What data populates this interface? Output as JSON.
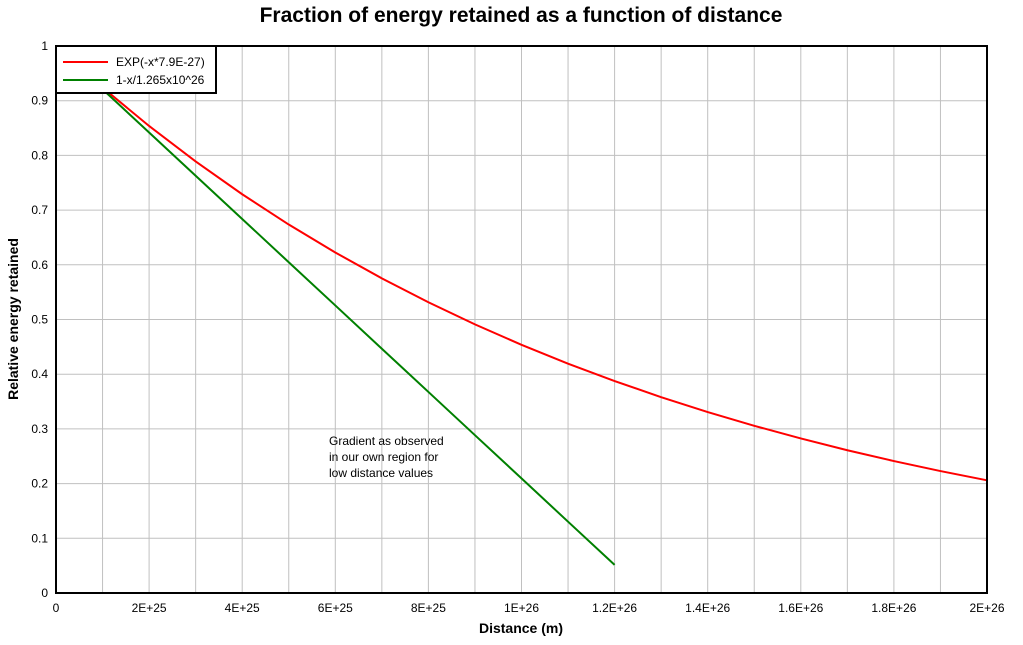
{
  "chart_data": {
    "type": "line",
    "title": "Fraction of energy retained as a function of distance",
    "xlabel": "Distance (m)",
    "ylabel": "Relative energy retained",
    "xlim": [
      0,
      2e+26
    ],
    "ylim": [
      0,
      1
    ],
    "grid": true,
    "legend_placement": "top-left",
    "x_ticks": [
      0,
      2e+25,
      4e+25,
      6e+25,
      8e+25,
      1e+26,
      1.2e+26,
      1.4e+26,
      1.6e+26,
      1.8e+26,
      2e+26
    ],
    "x_tick_labels": [
      "0",
      "2E+25",
      "4E+25",
      "6E+25",
      "8E+25",
      "1E+26",
      "1.2E+26",
      "1.4E+26",
      "1.6E+26",
      "1.8E+26",
      "2E+26"
    ],
    "y_ticks": [
      0,
      0.1,
      0.2,
      0.3,
      0.4,
      0.5,
      0.6,
      0.7,
      0.8,
      0.9,
      1
    ],
    "y_tick_labels": [
      "0",
      "0.1",
      "0.2",
      "0.3",
      "0.4",
      "0.5",
      "0.6",
      "0.7",
      "0.8",
      "0.9",
      "1"
    ],
    "series": [
      {
        "name": "EXP(-x*7.9E-27)",
        "color": "#ff0000",
        "x": [
          0,
          1e+25,
          2e+25,
          3e+25,
          4e+25,
          5e+25,
          6e+25,
          7e+25,
          8e+25,
          9e+25,
          1e+26,
          1.1e+26,
          1.2e+26,
          1.3e+26,
          1.4e+26,
          1.5e+26,
          1.6e+26,
          1.7e+26,
          1.8e+26,
          1.9e+26,
          2e+26
        ],
        "y": [
          1,
          0.924,
          0.8538,
          0.789,
          0.729,
          0.6736,
          0.6225,
          0.5752,
          0.5315,
          0.4911,
          0.4538,
          0.4193,
          0.3875,
          0.358,
          0.3308,
          0.3057,
          0.2825,
          0.261,
          0.2412,
          0.2229,
          0.206
        ]
      },
      {
        "name": "1-x/1.265x10^26",
        "color": "#008000",
        "x": [
          0,
          1e+25,
          2e+25,
          3e+25,
          4e+25,
          5e+25,
          6e+25,
          7e+25,
          8e+25,
          9e+25,
          1e+26,
          1.1e+26,
          1.2e+26
        ],
        "y": [
          1,
          0.9209,
          0.8419,
          0.7628,
          0.6838,
          0.6047,
          0.5257,
          0.4466,
          0.3676,
          0.2885,
          0.2095,
          0.1304,
          0.0514
        ]
      }
    ],
    "annotation": [
      "Gradient as observed",
      "in our own region for",
      "low distance values"
    ]
  }
}
